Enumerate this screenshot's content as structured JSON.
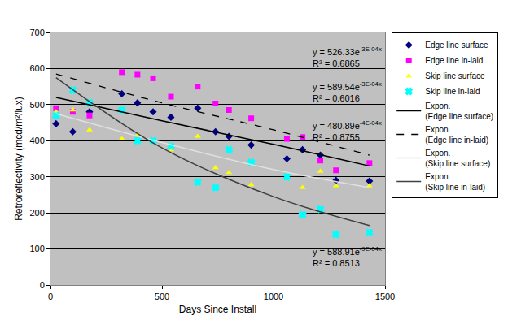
{
  "chart_data": {
    "type": "scatter",
    "x_label": "Days Since Install",
    "y_label": "Retroreflectivity (mcd/m²/lux)",
    "xlim": [
      0,
      1500
    ],
    "xticks": [
      0,
      500,
      1000,
      1500
    ],
    "ylim": [
      0,
      700
    ],
    "yticks": [
      0,
      100,
      200,
      300,
      400,
      500,
      600,
      700
    ],
    "grid": true,
    "legend": "right",
    "series": [
      {
        "name": "Edge line surface",
        "type": "scatter",
        "color": "#000080",
        "marker": "diamond",
        "x": [
          25,
          100,
          175,
          320,
          390,
          460,
          540,
          660,
          740,
          800,
          900,
          1060,
          1130,
          1210,
          1280,
          1430
        ],
        "values": [
          447,
          425,
          480,
          530,
          505,
          480,
          465,
          490,
          425,
          412,
          388,
          350,
          375,
          360,
          290,
          288
        ]
      },
      {
        "name": "Edge line in-laid",
        "type": "scatter",
        "color": "#FF00FF",
        "marker": "square",
        "x": [
          25,
          100,
          175,
          320,
          390,
          460,
          540,
          660,
          740,
          800,
          900,
          1060,
          1130,
          1210,
          1280,
          1430
        ],
        "values": [
          490,
          480,
          470,
          590,
          583,
          573,
          522,
          550,
          503,
          485,
          462,
          405,
          410,
          345,
          318,
          338
        ]
      },
      {
        "name": "Skip line surface",
        "type": "scatter",
        "color": "#FFFF00",
        "marker": "triangle-up",
        "x": [
          25,
          100,
          175,
          320,
          390,
          460,
          540,
          660,
          740,
          800,
          900,
          1060,
          1130,
          1210,
          1280,
          1430
        ],
        "values": [
          480,
          485,
          430,
          405,
          415,
          400,
          375,
          412,
          325,
          312,
          278,
          300,
          270,
          315,
          275,
          275
        ]
      },
      {
        "name": "Skip line in-laid",
        "type": "scatter",
        "color": "#00FFFF",
        "marker": "x",
        "x": [
          25,
          100,
          175,
          320,
          390,
          460,
          540,
          660,
          740,
          800,
          900,
          1060,
          1130,
          1210,
          1280,
          1430
        ],
        "values": [
          470,
          540,
          505,
          485,
          400,
          400,
          385,
          285,
          270,
          375,
          340,
          300,
          195,
          210,
          140,
          145
        ]
      },
      {
        "name": "Expon. (Edge line surface)",
        "type": "line",
        "color": "#000000",
        "line_style": "solid",
        "x": [
          25,
          500,
          1000,
          1430
        ],
        "values": [
          520,
          455,
          390,
          330
        ]
      },
      {
        "name": "Expon. (Edge line in-laid)",
        "type": "line",
        "color": "#000000",
        "line_style": "dash",
        "x": [
          25,
          500,
          1000,
          1430
        ],
        "values": [
          585,
          505,
          430,
          360
        ]
      },
      {
        "name": "Expon. (Skip line surface)",
        "type": "line",
        "color": "#E0E0E0",
        "line_style": "solid",
        "x": [
          25,
          500,
          1000,
          1430
        ],
        "values": [
          475,
          395,
          320,
          270
        ]
      },
      {
        "name": "Expon. (Skip line in-laid)",
        "type": "line",
        "color": "#404040",
        "line_style": "solid",
        "x": [
          25,
          500,
          1000,
          1430
        ],
        "values": [
          575,
          380,
          245,
          165
        ]
      }
    ],
    "annotations": [
      {
        "equation": "y = 526.33e",
        "exponent": "-3E-04x",
        "r_squared": "R² = 0.6865"
      },
      {
        "equation": "y = 589.54e",
        "exponent": "-3E-04x",
        "r_squared": "R² = 0.6016"
      },
      {
        "equation": "y = 480.89e",
        "exponent": "-4E-04x",
        "r_squared": "R² = 0.8755"
      },
      {
        "equation": "y = 588.91e",
        "exponent": "-9E-04x",
        "r_squared": "R² = 0.8513"
      }
    ]
  }
}
